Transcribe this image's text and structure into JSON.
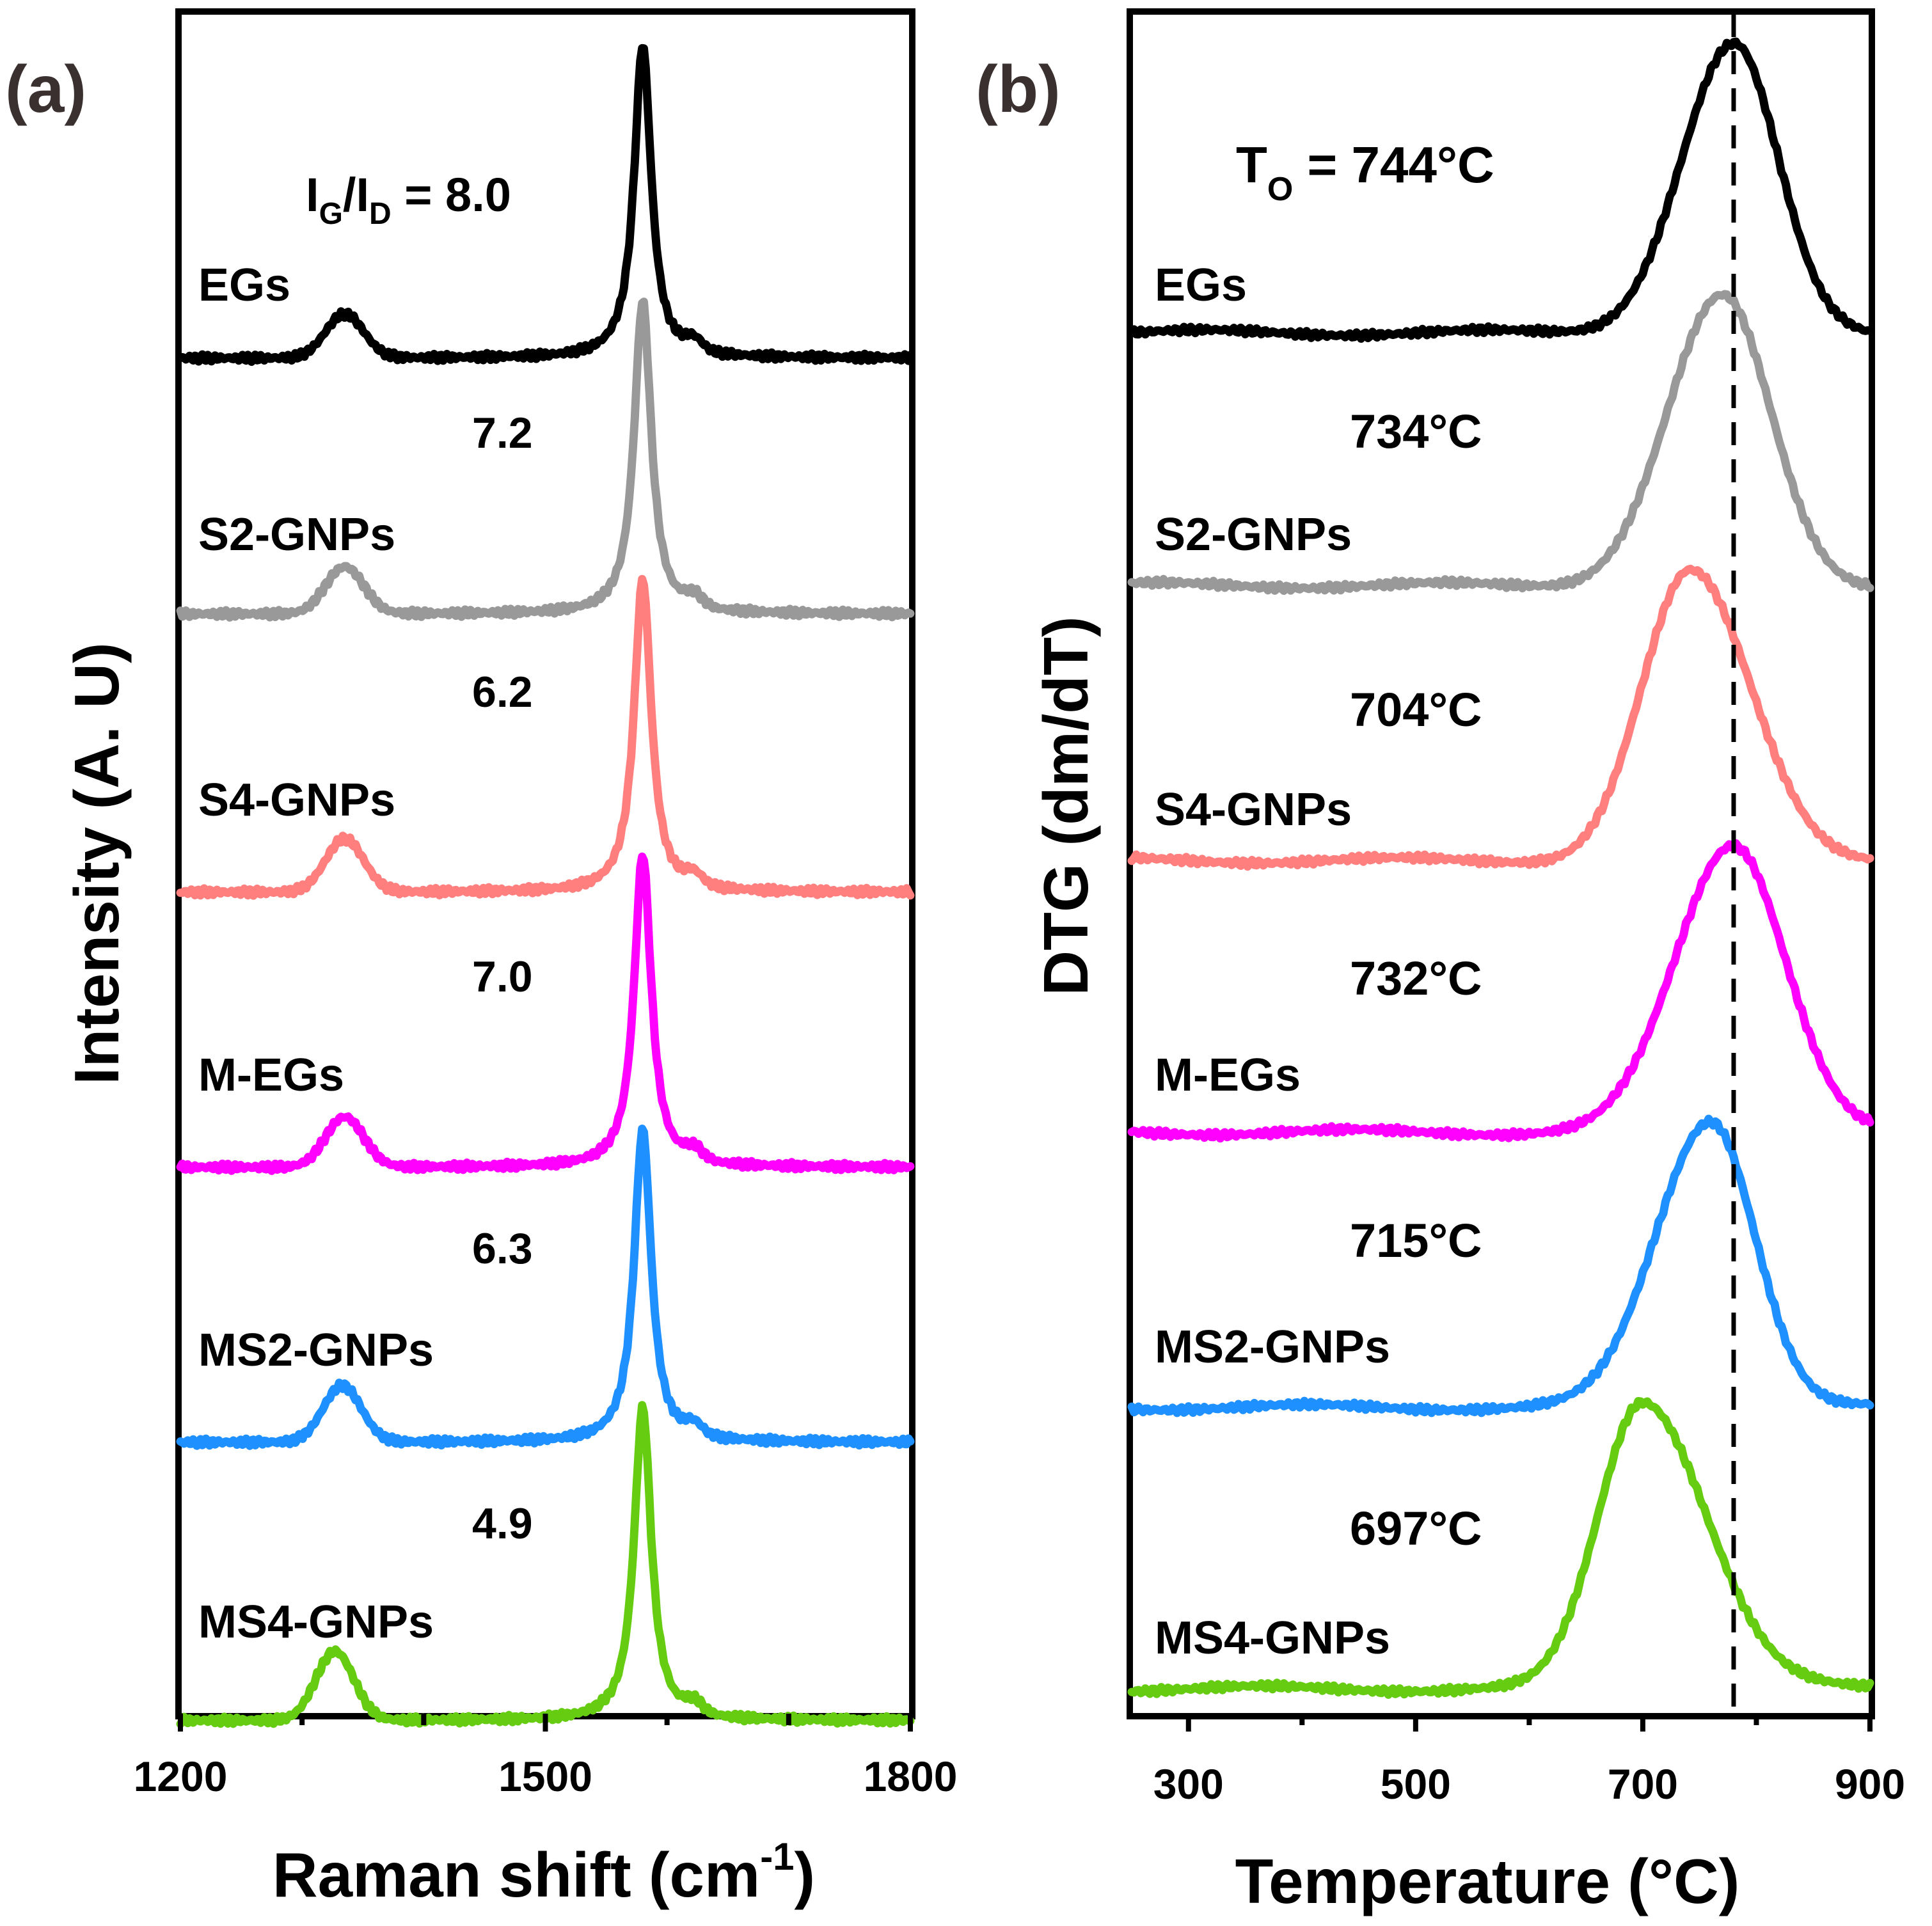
{
  "chart_data": [
    {
      "id": "a",
      "panel_label": "(a)",
      "type": "line",
      "xlabel_main": "Raman shift (cm",
      "xlabel_sup": "-1",
      "xlabel_tail": ")",
      "ylabel": "Intensity (A. U)",
      "xlim": [
        1200,
        1800
      ],
      "xticks": [
        1200,
        1500,
        1800
      ],
      "grid": false,
      "annotation": {
        "prefix": "I",
        "sub1": "G",
        "slash": "/I",
        "sub2": "D",
        "rest": " = 8.0"
      },
      "series": [
        {
          "name": "EGs",
          "ratio": "8.0",
          "color": "#000000",
          "d_center": 1335,
          "d_amp": 0.14,
          "g_center": 1580,
          "g_amp": 1.0
        },
        {
          "name": "S2-GNPs",
          "ratio": "7.2",
          "color": "#999999",
          "d_center": 1335,
          "d_amp": 0.15,
          "g_center": 1580,
          "g_amp": 1.0
        },
        {
          "name": "S4-GNPs",
          "ratio": "6.2",
          "color": "#ff7f7f",
          "d_center": 1335,
          "d_amp": 0.17,
          "g_center": 1580,
          "g_amp": 1.0
        },
        {
          "name": "M-EGs",
          "ratio": "7.0",
          "color": "#ff00ff",
          "d_center": 1335,
          "d_amp": 0.16,
          "g_center": 1580,
          "g_amp": 1.0
        },
        {
          "name": "MS2-GNPs",
          "ratio": "6.3",
          "color": "#1e90ff",
          "d_center": 1333,
          "d_amp": 0.18,
          "g_center": 1580,
          "g_amp": 1.0
        },
        {
          "name": "MS4-GNPs",
          "ratio": "4.9",
          "color": "#66cc11",
          "d_center": 1327,
          "d_amp": 0.22,
          "g_center": 1580,
          "g_amp": 1.0
        }
      ]
    },
    {
      "id": "b",
      "panel_label": "(b)",
      "type": "line",
      "xlabel": "Temperature (°C)",
      "ylabel": "DTG (dm/dT)",
      "xlim": [
        250,
        900
      ],
      "xticks": [
        300,
        500,
        700,
        900
      ],
      "grid": false,
      "reference_line_x": 780,
      "annotation": {
        "prefix": "T",
        "sub": "O",
        "rest": " = 744°C"
      },
      "series": [
        {
          "name": "EGs",
          "onset": "744°C",
          "color": "#000000",
          "peak": 780,
          "width_left": 65,
          "width_right": 55
        },
        {
          "name": "S2-GNPs",
          "onset": "734°C",
          "color": "#999999",
          "peak": 770,
          "width_left": 68,
          "width_right": 60
        },
        {
          "name": "S4-GNPs",
          "onset": "704°C",
          "color": "#ff7f7f",
          "peak": 742,
          "width_left": 60,
          "width_right": 75
        },
        {
          "name": "M-EGs",
          "onset": "732°C",
          "color": "#ff00ff",
          "peak": 780,
          "width_left": 72,
          "width_right": 65
        },
        {
          "name": "MS2-GNPs",
          "onset": "715°C",
          "color": "#1e90ff",
          "peak": 760,
          "width_left": 68,
          "width_right": 55
        },
        {
          "name": "MS4-GNPs",
          "onset": "697°C",
          "color": "#66cc11",
          "peak": 700,
          "width_left": 55,
          "width_right": 80
        }
      ]
    }
  ]
}
